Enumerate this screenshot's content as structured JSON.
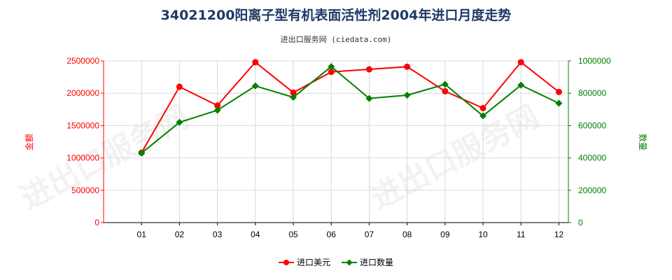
{
  "chart_data": {
    "type": "line",
    "title": "34021200阳离子型有机表面活性剂2004年进口月度走势",
    "subtitle": "进出口服务网 (ciedata.com)",
    "categories": [
      "01",
      "02",
      "03",
      "04",
      "05",
      "06",
      "07",
      "08",
      "09",
      "10",
      "11",
      "12"
    ],
    "left_axis": {
      "label": "金额",
      "range": [
        0,
        2500000
      ],
      "ticks": [
        "0",
        "500000",
        "1000000",
        "1500000",
        "2000000",
        "2500000"
      ],
      "color": "#ff0000"
    },
    "right_axis": {
      "label": "数量",
      "range": [
        0,
        1000000
      ],
      "ticks": [
        "0",
        "200000",
        "400000",
        "600000",
        "800000",
        "1000000"
      ],
      "color": "#008000"
    },
    "series": [
      {
        "name": "进口美元",
        "axis": "left",
        "color": "#ff0000",
        "values": [
          1080000,
          2100000,
          1810000,
          2480000,
          2010000,
          2330000,
          2370000,
          2410000,
          2030000,
          1770000,
          2480000,
          2020000
        ]
      },
      {
        "name": "进口数量",
        "axis": "right",
        "color": "#008000",
        "values": [
          430000,
          620000,
          695000,
          845000,
          775000,
          965000,
          768000,
          788000,
          855000,
          660000,
          850000,
          738000
        ]
      }
    ],
    "grid": true,
    "legend_position": "bottom-center",
    "watermark": "进出口服务网"
  }
}
